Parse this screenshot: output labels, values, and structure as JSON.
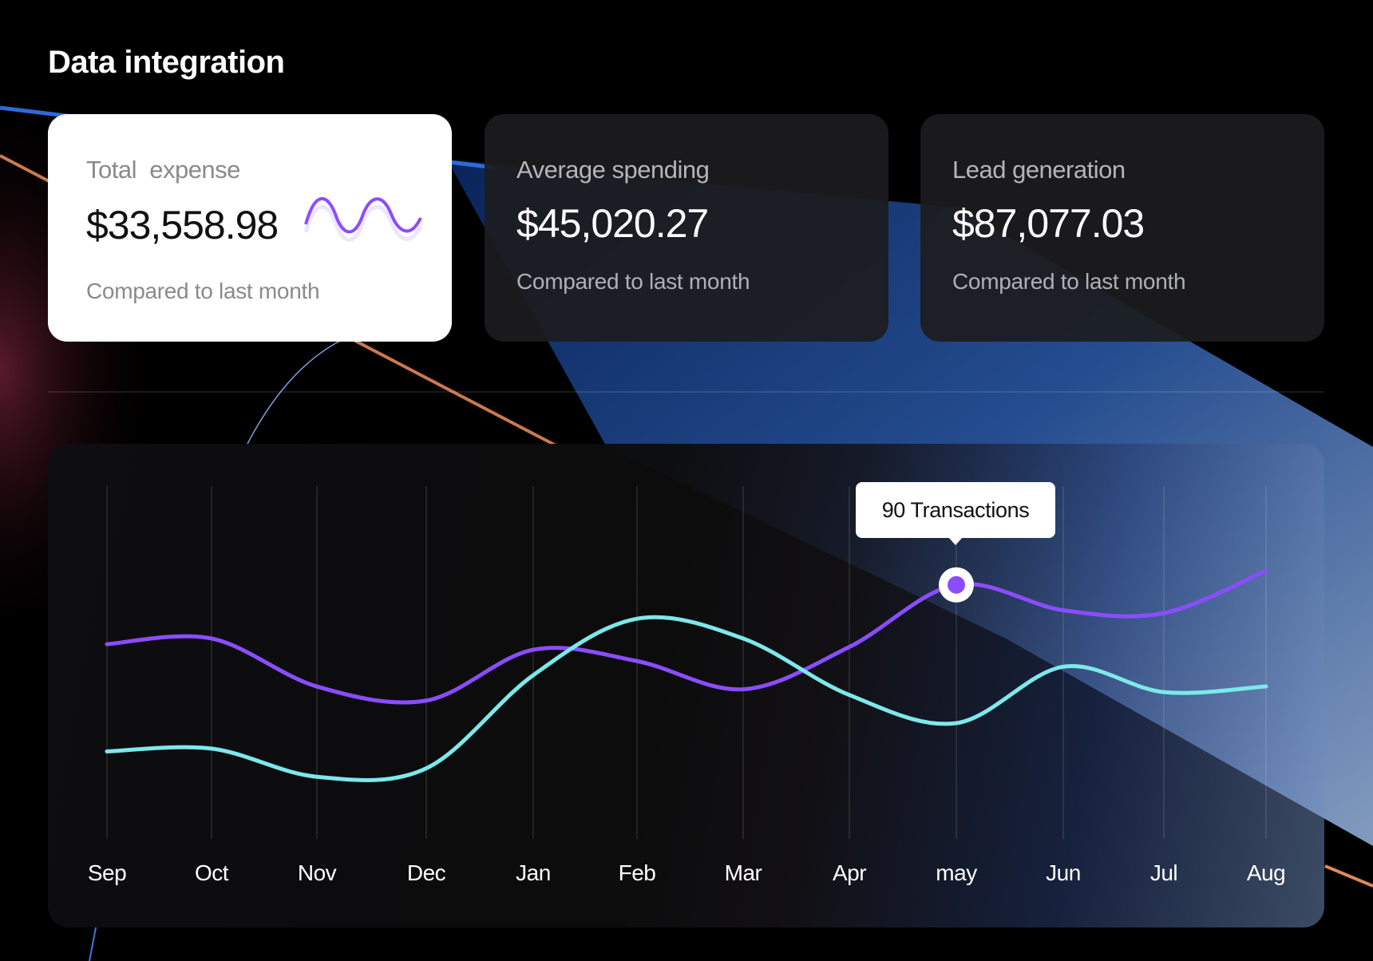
{
  "header": {
    "title": "Data integration"
  },
  "cards": [
    {
      "label": "Total  expense",
      "value": "$33,558.98",
      "compare": "Compared to last month",
      "sparkline_icon": "wave-sparkline"
    },
    {
      "label": "Average spending",
      "value": "$45,020.27",
      "compare": "Compared to last month"
    },
    {
      "label": "Lead generation",
      "value": "$87,077.03",
      "compare": "Compared to last month"
    }
  ],
  "colors": {
    "accent_purple": "#8b4dff",
    "accent_cyan": "#7de8ea",
    "card_light": "#ffffff",
    "card_dark": "#1c1c1e"
  },
  "chart_data": {
    "type": "line",
    "categories": [
      "Sep",
      "Oct",
      "Nov",
      "Dec",
      "Jan",
      "Feb",
      "Mar",
      "Apr",
      "may",
      "Jun",
      "Jul",
      "Aug"
    ],
    "series": [
      {
        "color": "#8b4dff",
        "values": [
          69,
          71,
          54,
          49,
          67,
          63,
          53,
          68,
          90,
          81,
          80,
          95
        ]
      },
      {
        "color": "#7de8ea",
        "values": [
          31,
          32,
          22,
          25,
          58,
          78,
          71,
          51,
          41,
          61,
          52,
          54
        ]
      }
    ],
    "ylim": [
      0,
      125
    ],
    "grid": "vertical",
    "tooltip": {
      "category": "may",
      "text": "90 Transactions"
    }
  }
}
